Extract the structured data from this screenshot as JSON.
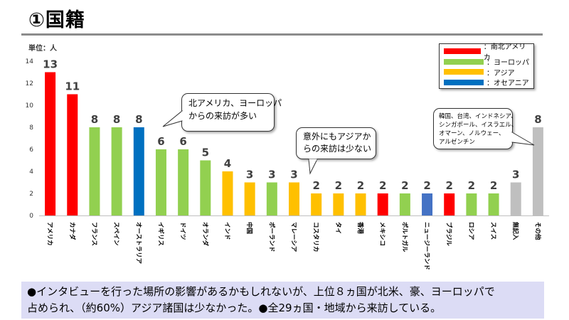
{
  "slide": {
    "title": "①国籍",
    "footer_lines": [
      "●インタビューを行った場所の影響があるかもしれないが、上位８ヵ国が北米、豪、ヨーロッパで",
      "占められ、（約60%）アジア諸国は少なかった。●全29ヵ国・地域から来訪している。"
    ]
  },
  "legend": [
    {
      "label": "：南北アメリカ",
      "color": "#ff0000"
    },
    {
      "label": "：ヨーロッパ",
      "color": "#92d050"
    },
    {
      "label": "：アジア",
      "color": "#ffc000"
    },
    {
      "label": "：オセアニア",
      "color": "#0070c0"
    }
  ],
  "callouts": [
    {
      "lines": [
        "北アメリカ、ヨーロッパ",
        "からの来訪が多い"
      ]
    },
    {
      "lines": [
        "意外にもアジアか",
        "らの来訪は少ない"
      ]
    },
    {
      "lines": [
        "韓国、台湾、インドネシア、",
        "シンガポール、イスラエル、",
        "オマーン、ノルウェー、",
        "アルゼンチン"
      ]
    }
  ],
  "chart_data": {
    "type": "bar",
    "unit_label": "単位：人",
    "ylim": [
      0,
      14
    ],
    "yticks": [
      0,
      2,
      4,
      6,
      8,
      10,
      12,
      14
    ],
    "grid": false,
    "legend_position": "top-right",
    "categories": [
      "アメリカ",
      "カナダ",
      "フランス",
      "スペイン",
      "オーストラリア",
      "イギリス",
      "ドイツ",
      "オランダ",
      "インド",
      "中国",
      "ポーランド",
      "マレーシア",
      "コスタリカ",
      "タイ",
      "香港",
      "メキシコ",
      "ポルトガル",
      "ニュージーランド",
      "ブラジル",
      "ロシア",
      "スイス",
      "無記入",
      "その他"
    ],
    "values": [
      13,
      11,
      8,
      8,
      8,
      6,
      6,
      5,
      4,
      3,
      3,
      3,
      2,
      2,
      2,
      2,
      2,
      2,
      2,
      2,
      2,
      3,
      8
    ],
    "colors": [
      "#ff0000",
      "#ff0000",
      "#92d050",
      "#92d050",
      "#0070c0",
      "#92d050",
      "#92d050",
      "#92d050",
      "#ffc000",
      "#ffc000",
      "#92d050",
      "#ffc000",
      "#ffc000",
      "#ffc000",
      "#ffc000",
      "#ff0000",
      "#92d050",
      "#4472c4",
      "#ff0000",
      "#92d050",
      "#92d050",
      "#bfbfbf",
      "#bfbfbf"
    ]
  }
}
